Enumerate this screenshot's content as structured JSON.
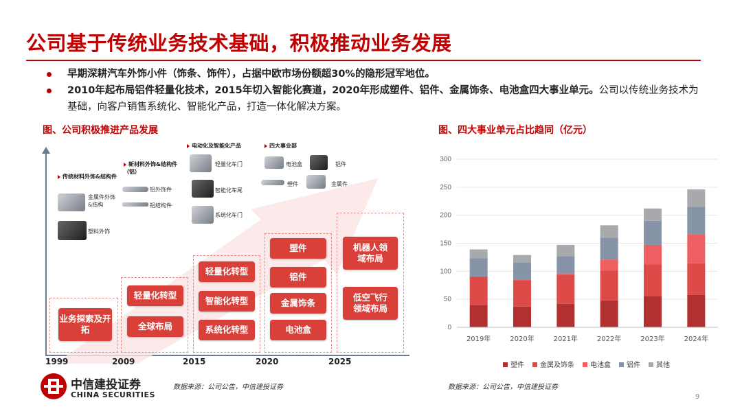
{
  "title": "公司基于传统业务技术基础，积极推动业务发展",
  "bullets": [
    {
      "bold": "早期深耕汽车外饰小件（饰条、饰件），占据中欧市场份额超30%的隐形冠军地位。",
      "normal": ""
    },
    {
      "bold": "2010年起布局铝件轻量化技术，2015年切入智能化赛道，2020年形成塑件、铝件、金属饰条、电池盒四大事业单元。",
      "normal": "公司以传统业务技术为基础，向客户销售系统化、智能化产品，打造一体化解决方案。"
    }
  ],
  "left_figure": {
    "title": "图、公司积极推进产品发展",
    "years": [
      "1999",
      "2009",
      "2015",
      "2020",
      "2025"
    ],
    "stage1_label": "传统材料外饰&结构件",
    "stage1_items": [
      "金属件外饰&结构",
      "塑料外饰"
    ],
    "stage2_label": "新材料外饰&结构件（铝）",
    "stage2_items": [
      "铝外饰件",
      "铝结构件"
    ],
    "stage3_label": "电动化及智能化产品",
    "stage3_items": [
      "轻量化车门",
      "智能化车尾",
      "系统化车门"
    ],
    "stage4_label": "四大事业部",
    "stage4_items": [
      "电池盒",
      "铝件",
      "塑件",
      "金属件"
    ],
    "buttons_1999": [
      "业务探索及开拓"
    ],
    "buttons_2009": [
      "轻量化转型",
      "全球布局"
    ],
    "buttons_2015": [
      "轻量化转型",
      "智能化转型",
      "系统化转型"
    ],
    "buttons_2020": [
      "塑件",
      "铝件",
      "金属饰条",
      "电池盒"
    ],
    "buttons_2025": [
      "机器人领域布局",
      "低空飞行领域布局"
    ]
  },
  "chart_data": {
    "type": "bar",
    "stacked": true,
    "title": "图、四大事业单元占比趋同（亿元）",
    "categories": [
      "2019年",
      "2020年",
      "2021年",
      "2022年",
      "2023年",
      "2024年"
    ],
    "ylim": [
      0,
      300
    ],
    "yticks": [
      "0",
      "50",
      "100",
      "150",
      "200",
      "250",
      "300"
    ],
    "series": [
      {
        "name": "塑件",
        "color": "#b23030",
        "values": [
          40,
          37,
          42,
          48,
          56,
          58
        ]
      },
      {
        "name": "金属及饰条",
        "color": "#de4a48",
        "values": [
          50,
          47,
          52,
          53,
          56,
          56
        ]
      },
      {
        "name": "电池盒",
        "color": "#ee5f61",
        "values": [
          0,
          1,
          2,
          20,
          35,
          52
        ]
      },
      {
        "name": "铝件",
        "color": "#8794a8",
        "values": [
          33,
          31,
          31,
          39,
          43,
          49
        ]
      },
      {
        "name": "其他",
        "color": "#a7a9ad",
        "values": [
          16,
          13,
          20,
          22,
          22,
          31
        ]
      }
    ]
  },
  "source_left": "数据来源：公司公告，中信建投证券",
  "source_right": "数据来源：公司公告，中信建投证券",
  "logo": {
    "cn": "中信建投证券",
    "en": "CHINA SECURITIES"
  },
  "page_number": "9"
}
